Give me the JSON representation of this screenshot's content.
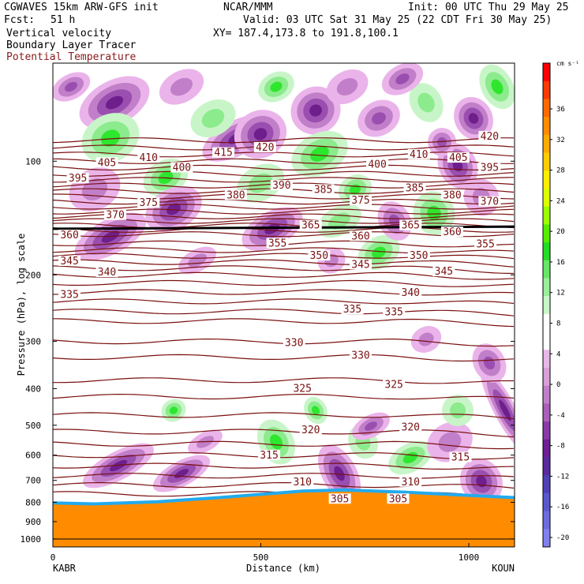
{
  "header": {
    "title": "CGWAVES 15km ARW-GFS init",
    "org": "NCAR/MMM",
    "init": "Init: 00 UTC Thu 29 May 25",
    "fcst_label": "Fcst:",
    "fcst_value": "51 h",
    "valid": "Valid: 03 UTC Sat 31 May 25 (22 CDT Fri 30 May 25)",
    "field1": "Vertical velocity",
    "xy": "XY= 187.4,173.8 to 191.8,100.1",
    "field2": "Boundary Layer Tracer",
    "field3": "Potential Temperature"
  },
  "colors": {
    "theta": "#7a1010",
    "terrain": "#ff8c00",
    "pos_light": "#c8f5c8",
    "pos_mid": "#8ceb8c",
    "pos_strong": "#2ee62e",
    "neg_light": "#eab4ea",
    "neg_mid": "#c27fc9",
    "neg_strong": "#9a4fb0",
    "neg_stronger": "#6e1f8c"
  },
  "chart_data": {
    "type": "cross-section",
    "xlabel": "Distance (km)",
    "ylabel": "Pressure (hPa), log scale",
    "x_ticks": [
      0,
      500,
      1000
    ],
    "xlim": [
      0,
      1110
    ],
    "y_ticks": [
      100,
      200,
      300,
      400,
      500,
      600,
      700,
      800,
      900,
      1000
    ],
    "y_tick_labels": [
      "100",
      "200",
      "300",
      "400",
      "500",
      "600",
      "700",
      "800",
      "900",
      "1000"
    ],
    "ylim_hpa": [
      1050,
      55
    ],
    "endpoints": {
      "left": "KABR",
      "right": "KOUN"
    },
    "colorbar": {
      "unit": "cm s⁻¹",
      "labels": [
        "36",
        "32",
        "28",
        "24",
        "20",
        "16",
        "12",
        "8",
        "4",
        "0",
        "-4",
        "-8",
        "-12",
        "-16",
        "-20"
      ],
      "colors": [
        "#ff0000",
        "#ff3a00",
        "#ff6a00",
        "#ff8c00",
        "#ffaa00",
        "#ffcc00",
        "#ffee00",
        "#dcff00",
        "#9aff00",
        "#55ee00",
        "#22dd22",
        "#66e866",
        "#99f099",
        "#c7f7c7",
        "#ffffff",
        "#ffffff",
        "#e8b8e8",
        "#d89fd8",
        "#c080c8",
        "#a860b8",
        "#8a3aa8",
        "#6e1e96",
        "#5a2aa0",
        "#5040b8",
        "#5858d0",
        "#6c6ce0",
        "#8080f0"
      ]
    },
    "theta_labels": [
      {
        "value": "420",
        "x_km": 510,
        "p_hpa": 92
      },
      {
        "value": "420",
        "x_km": 1050,
        "p_hpa": 86
      },
      {
        "value": "415",
        "x_km": 410,
        "p_hpa": 95
      },
      {
        "value": "410",
        "x_km": 230,
        "p_hpa": 98
      },
      {
        "value": "410",
        "x_km": 880,
        "p_hpa": 96
      },
      {
        "value": "405",
        "x_km": 130,
        "p_hpa": 101
      },
      {
        "value": "405",
        "x_km": 975,
        "p_hpa": 98
      },
      {
        "value": "400",
        "x_km": 310,
        "p_hpa": 104
      },
      {
        "value": "400",
        "x_km": 780,
        "p_hpa": 102
      },
      {
        "value": "395",
        "x_km": 60,
        "p_hpa": 111
      },
      {
        "value": "395",
        "x_km": 1050,
        "p_hpa": 104
      },
      {
        "value": "390",
        "x_km": 550,
        "p_hpa": 116
      },
      {
        "value": "385",
        "x_km": 650,
        "p_hpa": 119
      },
      {
        "value": "385",
        "x_km": 870,
        "p_hpa": 118
      },
      {
        "value": "380",
        "x_km": 440,
        "p_hpa": 123
      },
      {
        "value": "380",
        "x_km": 960,
        "p_hpa": 123
      },
      {
        "value": "375",
        "x_km": 230,
        "p_hpa": 129
      },
      {
        "value": "375",
        "x_km": 740,
        "p_hpa": 127
      },
      {
        "value": "370",
        "x_km": 150,
        "p_hpa": 139
      },
      {
        "value": "370",
        "x_km": 1050,
        "p_hpa": 128
      },
      {
        "value": "365",
        "x_km": 620,
        "p_hpa": 148
      },
      {
        "value": "365",
        "x_km": 860,
        "p_hpa": 148
      },
      {
        "value": "360",
        "x_km": 40,
        "p_hpa": 157
      },
      {
        "value": "360",
        "x_km": 740,
        "p_hpa": 158
      },
      {
        "value": "360",
        "x_km": 960,
        "p_hpa": 154
      },
      {
        "value": "355",
        "x_km": 540,
        "p_hpa": 165
      },
      {
        "value": "355",
        "x_km": 1040,
        "p_hpa": 166
      },
      {
        "value": "350",
        "x_km": 640,
        "p_hpa": 178
      },
      {
        "value": "350",
        "x_km": 880,
        "p_hpa": 178
      },
      {
        "value": "345",
        "x_km": 40,
        "p_hpa": 184
      },
      {
        "value": "345",
        "x_km": 740,
        "p_hpa": 188
      },
      {
        "value": "345",
        "x_km": 940,
        "p_hpa": 196
      },
      {
        "value": "340",
        "x_km": 130,
        "p_hpa": 197
      },
      {
        "value": "340",
        "x_km": 860,
        "p_hpa": 223
      },
      {
        "value": "335",
        "x_km": 40,
        "p_hpa": 226
      },
      {
        "value": "335",
        "x_km": 720,
        "p_hpa": 247
      },
      {
        "value": "335",
        "x_km": 820,
        "p_hpa": 251
      },
      {
        "value": "330",
        "x_km": 580,
        "p_hpa": 303
      },
      {
        "value": "330",
        "x_km": 740,
        "p_hpa": 327
      },
      {
        "value": "325",
        "x_km": 600,
        "p_hpa": 400
      },
      {
        "value": "325",
        "x_km": 820,
        "p_hpa": 391
      },
      {
        "value": "320",
        "x_km": 620,
        "p_hpa": 515
      },
      {
        "value": "320",
        "x_km": 860,
        "p_hpa": 507
      },
      {
        "value": "315",
        "x_km": 520,
        "p_hpa": 601
      },
      {
        "value": "315",
        "x_km": 980,
        "p_hpa": 608
      },
      {
        "value": "310",
        "x_km": 600,
        "p_hpa": 707
      },
      {
        "value": "310",
        "x_km": 860,
        "p_hpa": 707
      },
      {
        "value": "305",
        "x_km": 690,
        "p_hpa": 784
      },
      {
        "value": "305",
        "x_km": 830,
        "p_hpa": 784
      }
    ]
  }
}
